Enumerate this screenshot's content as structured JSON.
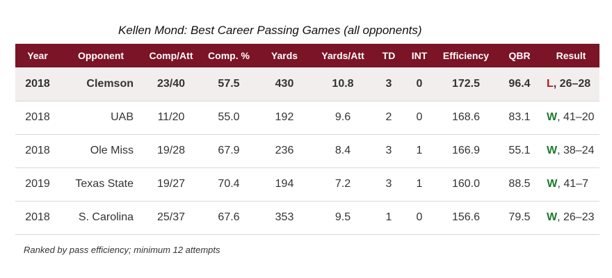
{
  "title": "Kellen Mond: Best Career Passing Games (all opponents)",
  "columns": [
    "Year",
    "Opponent",
    "Comp/Att",
    "Comp. %",
    "Yards",
    "Yards/Att",
    "TD",
    "INT",
    "Efficiency",
    "QBR",
    "Result"
  ],
  "rows": [
    {
      "year": "2018",
      "opponent": "Clemson",
      "comp_att": "23/40",
      "comp_pct": "57.5",
      "yards": "430",
      "yards_att": "10.8",
      "td": "3",
      "int": "0",
      "efficiency": "172.5",
      "qbr": "96.4",
      "result_letter": "L",
      "result_score": ", 26–28",
      "highlight": true
    },
    {
      "year": "2018",
      "opponent": "UAB",
      "comp_att": "11/20",
      "comp_pct": "55.0",
      "yards": "192",
      "yards_att": "9.6",
      "td": "2",
      "int": "0",
      "efficiency": "168.6",
      "qbr": "83.1",
      "result_letter": "W",
      "result_score": ", 41–20",
      "highlight": false
    },
    {
      "year": "2018",
      "opponent": "Ole Miss",
      "comp_att": "19/28",
      "comp_pct": "67.9",
      "yards": "236",
      "yards_att": "8.4",
      "td": "3",
      "int": "1",
      "efficiency": "166.9",
      "qbr": "55.1",
      "result_letter": "W",
      "result_score": ", 38–24",
      "highlight": false
    },
    {
      "year": "2019",
      "opponent": "Texas State",
      "comp_att": "19/27",
      "comp_pct": "70.4",
      "yards": "194",
      "yards_att": "7.2",
      "td": "3",
      "int": "1",
      "efficiency": "160.0",
      "qbr": "88.5",
      "result_letter": "W",
      "result_score": ", 41–7",
      "highlight": false
    },
    {
      "year": "2018",
      "opponent": "S. Carolina",
      "comp_att": "25/37",
      "comp_pct": "67.6",
      "yards": "353",
      "yards_att": "9.5",
      "td": "1",
      "int": "0",
      "efficiency": "156.6",
      "qbr": "79.5",
      "result_letter": "W",
      "result_score": ", 26–23",
      "highlight": false
    }
  ],
  "footnote": "Ranked by pass efficiency; minimum 12 attempts",
  "colors": {
    "header_bg": "#7a1426",
    "win": "#1e7a2e",
    "loss": "#b01c1c",
    "highlight_row": "#f3eeee"
  }
}
